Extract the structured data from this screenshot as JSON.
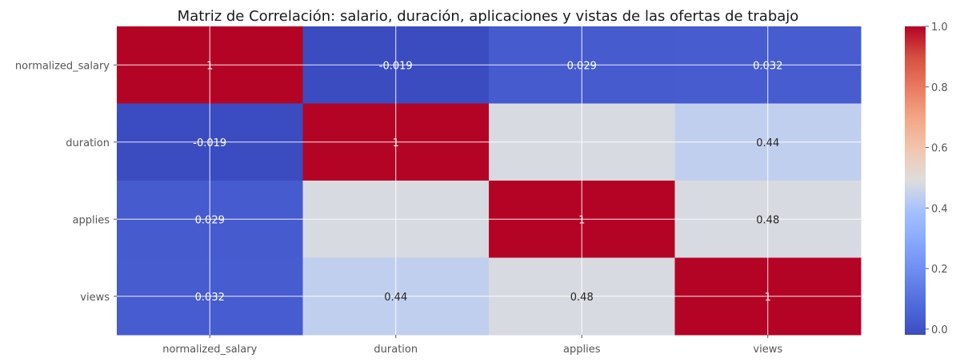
{
  "chart_data": {
    "type": "heatmap",
    "title": "Matriz de Correlación: salario, duración, aplicaciones y vistas de las ofertas de trabajo",
    "x_categories": [
      "normalized_salary",
      "duration",
      "applies",
      "views"
    ],
    "y_categories": [
      "normalized_salary",
      "duration",
      "applies",
      "views"
    ],
    "values": [
      [
        1,
        -0.019,
        0.029,
        0.032
      ],
      [
        -0.019,
        1,
        0.48,
        0.44
      ],
      [
        0.029,
        0.48,
        1,
        0.48
      ],
      [
        0.032,
        0.44,
        0.48,
        1
      ]
    ],
    "labels": [
      [
        "1",
        "-0.019",
        "0.029",
        "0.032"
      ],
      [
        "-0.019",
        "1",
        "",
        "0.44"
      ],
      [
        "0.029",
        "",
        "1",
        "0.48"
      ],
      [
        "0.032",
        "0.44",
        "0.48",
        "1"
      ]
    ],
    "colormap": "coolwarm",
    "vmin": -0.019,
    "vmax": 1.0,
    "colorbar_ticks": [
      0.0,
      0.2,
      0.4,
      0.6,
      0.8,
      1.0
    ],
    "colorbar_tick_labels": [
      "0.0",
      "0.2",
      "0.4",
      "0.6",
      "0.8",
      "1.0"
    ],
    "grid": true
  }
}
